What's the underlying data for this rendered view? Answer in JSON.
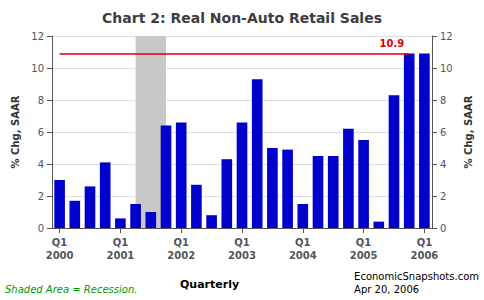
{
  "chart_data": {
    "type": "bar",
    "title": "Chart 2: Real Non-Auto Retail Sales",
    "ylabel": "% Chg, SAAR",
    "y2label": "% Chg, SAAR",
    "xlabel": "Quarterly",
    "categories": [
      "Q1\n2000",
      null,
      null,
      null,
      "Q1\n2001",
      null,
      null,
      null,
      "Q1\n2002",
      null,
      null,
      null,
      "Q1\n2003",
      null,
      null,
      null,
      "Q1\n2004",
      null,
      null,
      null,
      "Q1\n2005",
      null,
      null,
      null,
      "Q1\n2006"
    ],
    "values": [
      3.0,
      1.7,
      2.6,
      4.1,
      0.6,
      1.5,
      1.0,
      6.4,
      6.6,
      2.7,
      0.8,
      4.3,
      6.6,
      9.3,
      5.0,
      4.9,
      1.5,
      4.5,
      4.5,
      6.2,
      5.5,
      0.4,
      8.3,
      10.9,
      10.9
    ],
    "color": "#0000cc",
    "ylim": [
      0,
      12
    ],
    "yticks": [
      0,
      2,
      4,
      6,
      8,
      10,
      12
    ],
    "y2lim": [
      0,
      12
    ],
    "y2ticks": [
      0,
      2,
      4,
      6,
      8,
      10,
      12
    ],
    "grid": true,
    "reference_line": {
      "value": 10.9,
      "label": "10.9",
      "color": "#dd0000"
    },
    "shaded": {
      "start": 5,
      "end": 7,
      "color": "#c8c8c8"
    },
    "annotations": [
      {
        "text": "Shaded Area = Recession.",
        "color": "#009900"
      },
      {
        "text": "EconomicSnapshots.com\nApr 20, 2006"
      }
    ]
  }
}
